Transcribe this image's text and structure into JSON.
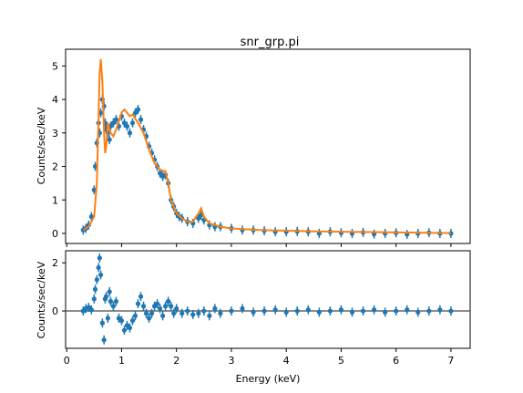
{
  "chart_data": [
    {
      "type": "scatter",
      "panel": "top",
      "title": "snr_grp.pi",
      "xlabel": "",
      "ylabel": "Counts/sec/keV",
      "xlim": [
        -0.02,
        7.35
      ],
      "ylim": [
        -0.3,
        5.5
      ],
      "yticks": [
        0,
        1,
        2,
        3,
        4,
        5
      ],
      "xticks": [
        0,
        1,
        2,
        3,
        4,
        5,
        6,
        7
      ],
      "colors": {
        "data": "#1f77b4",
        "model": "#ff7f0e"
      },
      "series": [
        {
          "kind": "data-with-errors",
          "points": [
            [
              0.3,
              0.1
            ],
            [
              0.35,
              0.15
            ],
            [
              0.4,
              0.25
            ],
            [
              0.45,
              0.5
            ],
            [
              0.5,
              1.3
            ],
            [
              0.52,
              2.0
            ],
            [
              0.55,
              2.7
            ],
            [
              0.58,
              3.3
            ],
            [
              0.6,
              3.0
            ],
            [
              0.62,
              3.6
            ],
            [
              0.65,
              4.0
            ],
            [
              0.68,
              3.8
            ],
            [
              0.7,
              3.3
            ],
            [
              0.72,
              3.1
            ],
            [
              0.75,
              3.0
            ],
            [
              0.78,
              2.8
            ],
            [
              0.8,
              3.2
            ],
            [
              0.85,
              3.3
            ],
            [
              0.9,
              3.4
            ],
            [
              0.95,
              3.2
            ],
            [
              1.0,
              3.5
            ],
            [
              1.05,
              3.3
            ],
            [
              1.1,
              3.2
            ],
            [
              1.15,
              3.0
            ],
            [
              1.2,
              3.3
            ],
            [
              1.25,
              3.6
            ],
            [
              1.3,
              3.7
            ],
            [
              1.35,
              3.4
            ],
            [
              1.4,
              3.1
            ],
            [
              1.45,
              2.9
            ],
            [
              1.5,
              2.6
            ],
            [
              1.55,
              2.4
            ],
            [
              1.6,
              2.2
            ],
            [
              1.65,
              2.0
            ],
            [
              1.7,
              1.8
            ],
            [
              1.75,
              1.7
            ],
            [
              1.8,
              1.75
            ],
            [
              1.85,
              1.5
            ],
            [
              1.9,
              1.0
            ],
            [
              1.95,
              0.8
            ],
            [
              2.0,
              0.6
            ],
            [
              2.05,
              0.5
            ],
            [
              2.1,
              0.45
            ],
            [
              2.2,
              0.35
            ],
            [
              2.3,
              0.3
            ],
            [
              2.4,
              0.45
            ],
            [
              2.45,
              0.55
            ],
            [
              2.5,
              0.4
            ],
            [
              2.6,
              0.25
            ],
            [
              2.7,
              0.2
            ],
            [
              2.8,
              0.2
            ],
            [
              3.0,
              0.15
            ],
            [
              3.2,
              0.1
            ],
            [
              3.4,
              0.1
            ],
            [
              3.6,
              0.08
            ],
            [
              3.8,
              0.05
            ],
            [
              4.0,
              0.05
            ],
            [
              4.2,
              0.06
            ],
            [
              4.4,
              0.05
            ],
            [
              4.6,
              0.0
            ],
            [
              4.8,
              0.05
            ],
            [
              5.0,
              0.02
            ],
            [
              5.2,
              0.0
            ],
            [
              5.4,
              0.03
            ],
            [
              5.6,
              -0.02
            ],
            [
              5.8,
              0.0
            ],
            [
              6.0,
              0.02
            ],
            [
              6.2,
              -0.03
            ],
            [
              6.4,
              0.0
            ],
            [
              6.6,
              0.02
            ],
            [
              6.8,
              0.0
            ],
            [
              7.0,
              0.0
            ]
          ]
        },
        {
          "kind": "model-line",
          "points": [
            [
              0.3,
              0.1
            ],
            [
              0.4,
              0.2
            ],
            [
              0.5,
              0.5
            ],
            [
              0.55,
              1.5
            ],
            [
              0.6,
              4.8
            ],
            [
              0.62,
              5.2
            ],
            [
              0.65,
              4.5
            ],
            [
              0.68,
              3.0
            ],
            [
              0.7,
              2.4
            ],
            [
              0.72,
              2.6
            ],
            [
              0.75,
              3.3
            ],
            [
              0.8,
              3.0
            ],
            [
              0.85,
              2.9
            ],
            [
              0.9,
              3.1
            ],
            [
              1.0,
              3.6
            ],
            [
              1.05,
              3.7
            ],
            [
              1.1,
              3.6
            ],
            [
              1.15,
              3.5
            ],
            [
              1.2,
              3.55
            ],
            [
              1.3,
              3.3
            ],
            [
              1.4,
              3.0
            ],
            [
              1.5,
              2.5
            ],
            [
              1.6,
              2.1
            ],
            [
              1.7,
              1.9
            ],
            [
              1.8,
              1.85
            ],
            [
              1.85,
              1.5
            ],
            [
              1.9,
              1.0
            ],
            [
              1.95,
              0.8
            ],
            [
              2.0,
              0.6
            ],
            [
              2.1,
              0.45
            ],
            [
              2.2,
              0.35
            ],
            [
              2.3,
              0.35
            ],
            [
              2.4,
              0.6
            ],
            [
              2.45,
              0.75
            ],
            [
              2.5,
              0.5
            ],
            [
              2.6,
              0.3
            ],
            [
              2.8,
              0.2
            ],
            [
              3.0,
              0.15
            ],
            [
              3.5,
              0.1
            ],
            [
              4.0,
              0.08
            ],
            [
              4.5,
              0.06
            ],
            [
              5.0,
              0.05
            ],
            [
              5.5,
              0.04
            ],
            [
              6.0,
              0.03
            ],
            [
              6.5,
              0.02
            ],
            [
              7.0,
              0.01
            ]
          ]
        }
      ]
    },
    {
      "type": "scatter",
      "panel": "bottom",
      "title": "",
      "xlabel": "Energy (keV)",
      "ylabel": "Counts/sec/keV",
      "xlim": [
        -0.02,
        7.35
      ],
      "ylim": [
        -1.55,
        2.5
      ],
      "yticks": [
        -2,
        0,
        2
      ],
      "xticks": [
        0,
        1,
        2,
        3,
        4,
        5,
        6,
        7
      ],
      "colors": {
        "data": "#1f77b4",
        "zeroline": "#666666"
      },
      "series": [
        {
          "kind": "residuals",
          "points": [
            [
              0.3,
              0.0
            ],
            [
              0.35,
              0.1
            ],
            [
              0.4,
              0.15
            ],
            [
              0.45,
              0.05
            ],
            [
              0.5,
              0.5
            ],
            [
              0.52,
              0.9
            ],
            [
              0.55,
              1.3
            ],
            [
              0.58,
              1.8
            ],
            [
              0.6,
              2.2
            ],
            [
              0.62,
              1.5
            ],
            [
              0.65,
              -0.5
            ],
            [
              0.68,
              -1.2
            ],
            [
              0.7,
              0.5
            ],
            [
              0.72,
              0.6
            ],
            [
              0.75,
              -0.3
            ],
            [
              0.78,
              0.8
            ],
            [
              0.8,
              0.4
            ],
            [
              0.85,
              0.2
            ],
            [
              0.9,
              0.4
            ],
            [
              0.95,
              -0.3
            ],
            [
              1.0,
              -0.4
            ],
            [
              1.05,
              -0.8
            ],
            [
              1.1,
              -0.6
            ],
            [
              1.15,
              -0.7
            ],
            [
              1.2,
              -0.4
            ],
            [
              1.25,
              -0.2
            ],
            [
              1.3,
              0.3
            ],
            [
              1.35,
              0.6
            ],
            [
              1.4,
              0.2
            ],
            [
              1.45,
              -0.1
            ],
            [
              1.5,
              -0.3
            ],
            [
              1.55,
              -0.1
            ],
            [
              1.6,
              0.2
            ],
            [
              1.65,
              0.3
            ],
            [
              1.7,
              0.1
            ],
            [
              1.75,
              -0.2
            ],
            [
              1.8,
              0.2
            ],
            [
              1.85,
              0.4
            ],
            [
              1.9,
              0.2
            ],
            [
              1.95,
              -0.1
            ],
            [
              2.0,
              0.1
            ],
            [
              2.1,
              -0.1
            ],
            [
              2.2,
              0.0
            ],
            [
              2.3,
              -0.15
            ],
            [
              2.4,
              -0.1
            ],
            [
              2.5,
              0.0
            ],
            [
              2.6,
              -0.2
            ],
            [
              2.7,
              0.1
            ],
            [
              2.8,
              -0.1
            ],
            [
              3.0,
              0.0
            ],
            [
              3.2,
              0.1
            ],
            [
              3.4,
              -0.05
            ],
            [
              3.6,
              0.0
            ],
            [
              3.8,
              0.05
            ],
            [
              4.0,
              -0.05
            ],
            [
              4.2,
              0.0
            ],
            [
              4.4,
              0.05
            ],
            [
              4.6,
              -0.05
            ],
            [
              4.8,
              0.0
            ],
            [
              5.0,
              0.05
            ],
            [
              5.2,
              -0.05
            ],
            [
              5.4,
              0.0
            ],
            [
              5.6,
              0.05
            ],
            [
              5.8,
              -0.05
            ],
            [
              6.0,
              0.0
            ],
            [
              6.2,
              0.05
            ],
            [
              6.4,
              -0.05
            ],
            [
              6.6,
              0.0
            ],
            [
              6.8,
              0.05
            ],
            [
              7.0,
              0.0
            ]
          ]
        }
      ]
    }
  ]
}
